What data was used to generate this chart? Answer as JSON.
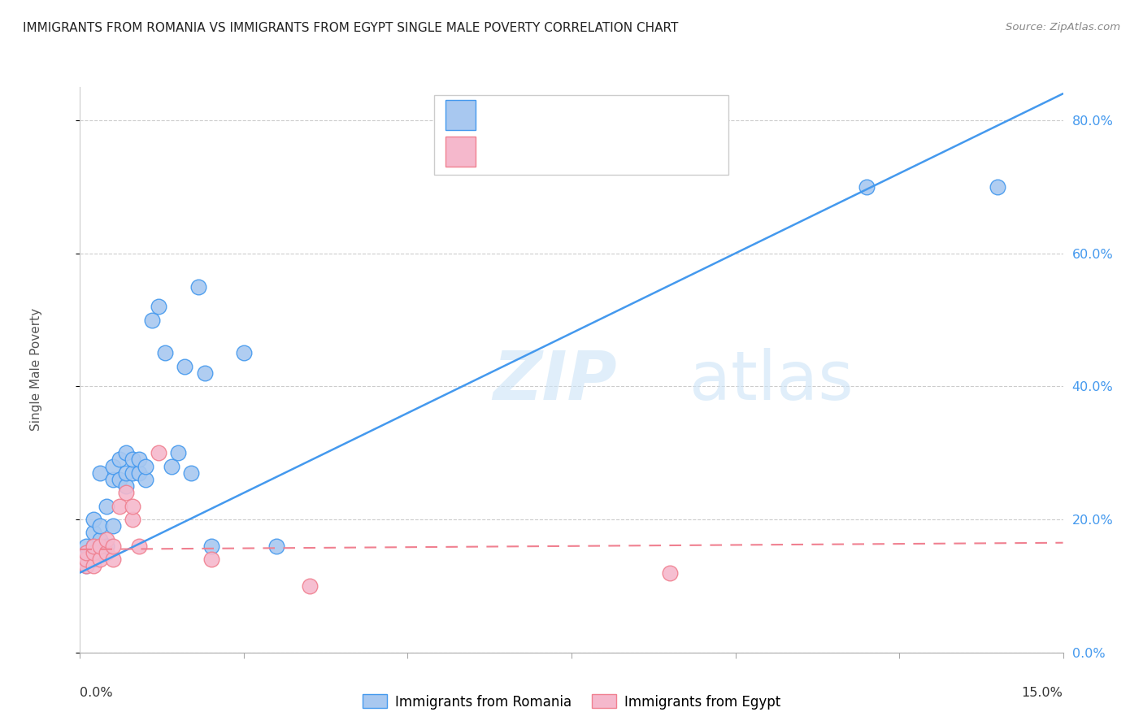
{
  "title": "IMMIGRANTS FROM ROMANIA VS IMMIGRANTS FROM EGYPT SINGLE MALE POVERTY CORRELATION CHART",
  "source": "Source: ZipAtlas.com",
  "ylabel": "Single Male Poverty",
  "legend_romania": "Immigrants from Romania",
  "legend_egypt": "Immigrants from Egypt",
  "color_romania": "#a8c8f0",
  "color_egypt": "#f5b8cc",
  "line_romania": "#4499ee",
  "line_egypt": "#f08090",
  "watermark_zip": "ZIP",
  "watermark_atlas": "atlas",
  "romania_x": [
    0.001,
    0.001,
    0.001,
    0.002,
    0.002,
    0.002,
    0.002,
    0.003,
    0.003,
    0.003,
    0.003,
    0.004,
    0.004,
    0.005,
    0.005,
    0.005,
    0.006,
    0.006,
    0.007,
    0.007,
    0.007,
    0.008,
    0.008,
    0.009,
    0.009,
    0.01,
    0.01,
    0.011,
    0.012,
    0.013,
    0.014,
    0.015,
    0.016,
    0.017,
    0.018,
    0.019,
    0.02,
    0.025,
    0.03,
    0.12,
    0.14
  ],
  "romania_y": [
    0.13,
    0.15,
    0.16,
    0.14,
    0.16,
    0.18,
    0.2,
    0.15,
    0.17,
    0.19,
    0.27,
    0.16,
    0.22,
    0.19,
    0.26,
    0.28,
    0.26,
    0.29,
    0.25,
    0.27,
    0.3,
    0.27,
    0.29,
    0.27,
    0.29,
    0.26,
    0.28,
    0.5,
    0.52,
    0.45,
    0.28,
    0.3,
    0.43,
    0.27,
    0.55,
    0.42,
    0.16,
    0.45,
    0.16,
    0.7,
    0.7
  ],
  "egypt_x": [
    0.001,
    0.001,
    0.001,
    0.002,
    0.002,
    0.002,
    0.003,
    0.003,
    0.004,
    0.004,
    0.005,
    0.005,
    0.006,
    0.007,
    0.008,
    0.008,
    0.009,
    0.012,
    0.02,
    0.035,
    0.09
  ],
  "egypt_y": [
    0.13,
    0.14,
    0.15,
    0.13,
    0.15,
    0.16,
    0.14,
    0.16,
    0.15,
    0.17,
    0.14,
    0.16,
    0.22,
    0.24,
    0.2,
    0.22,
    0.16,
    0.3,
    0.14,
    0.1,
    0.12
  ],
  "xmin": 0.0,
  "xmax": 0.15,
  "ymin": 0.0,
  "ymax": 0.85,
  "yticks": [
    0.0,
    0.2,
    0.4,
    0.6,
    0.8
  ],
  "ytick_labels": [
    "0.0%",
    "20.0%",
    "40.0%",
    "60.0%",
    "80.0%"
  ],
  "xticks": [
    0.0,
    0.025,
    0.05,
    0.075,
    0.1,
    0.125,
    0.15
  ],
  "romania_line_x": [
    0.0,
    0.15
  ],
  "romania_line_y": [
    0.12,
    0.84
  ],
  "egypt_line_x": [
    0.0,
    0.15
  ],
  "egypt_line_y": [
    0.155,
    0.165
  ]
}
